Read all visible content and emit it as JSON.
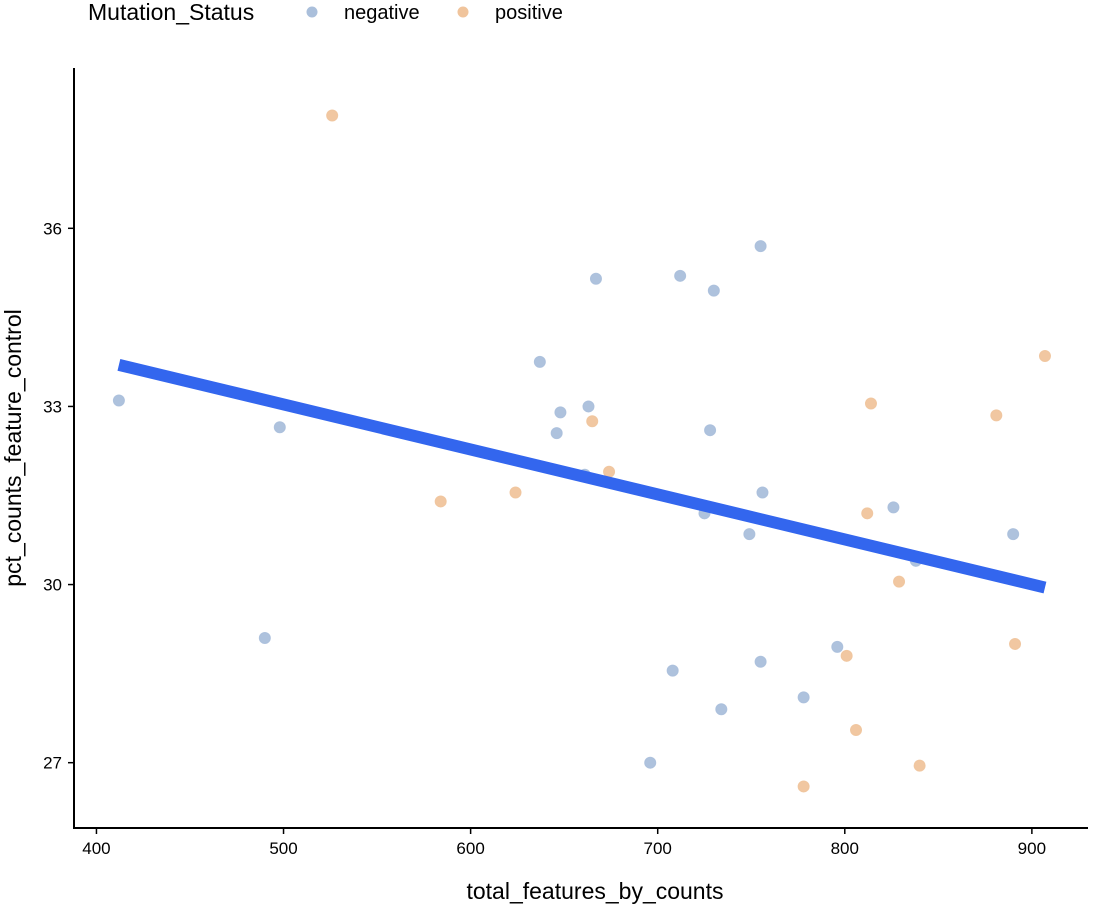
{
  "chart_data": {
    "type": "scatter",
    "xlabel": "total_features_by_counts",
    "ylabel": "pct_counts_feature_control",
    "xlim": [
      388,
      930
    ],
    "ylim": [
      25.9,
      38.7
    ],
    "xticks": [
      400,
      500,
      600,
      700,
      800,
      900
    ],
    "yticks": [
      27,
      30,
      33,
      36
    ],
    "grid": false,
    "legend": {
      "title": "Mutation_Status",
      "placement": "top-left"
    },
    "series": [
      {
        "name": "negative",
        "color": "#aabfdb",
        "points": [
          [
            412,
            33.1
          ],
          [
            490,
            29.1
          ],
          [
            498,
            32.65
          ],
          [
            637,
            33.75
          ],
          [
            646,
            32.55
          ],
          [
            648,
            32.9
          ],
          [
            661,
            31.85
          ],
          [
            663,
            33.0
          ],
          [
            667,
            35.15
          ],
          [
            696,
            27.0
          ],
          [
            708,
            28.55
          ],
          [
            712,
            35.2
          ],
          [
            725,
            31.2
          ],
          [
            728,
            32.6
          ],
          [
            730,
            34.95
          ],
          [
            734,
            27.9
          ],
          [
            749,
            30.85
          ],
          [
            755,
            35.7
          ],
          [
            755,
            28.7
          ],
          [
            756,
            31.55
          ],
          [
            778,
            28.1
          ],
          [
            796,
            28.95
          ],
          [
            826,
            31.3
          ],
          [
            838,
            30.4
          ],
          [
            890,
            30.85
          ]
        ]
      },
      {
        "name": "positive",
        "color": "#f0c49c",
        "points": [
          [
            526,
            37.9
          ],
          [
            584,
            31.4
          ],
          [
            624,
            31.55
          ],
          [
            665,
            32.75
          ],
          [
            674,
            31.9
          ],
          [
            778,
            26.6
          ],
          [
            801,
            28.8
          ],
          [
            806,
            27.55
          ],
          [
            812,
            31.2
          ],
          [
            814,
            33.05
          ],
          [
            829,
            30.05
          ],
          [
            840,
            26.95
          ],
          [
            881,
            32.85
          ],
          [
            891,
            29.0
          ],
          [
            907,
            33.85
          ]
        ]
      }
    ],
    "trend_line": {
      "color": "#3366ee",
      "x": [
        412,
        907
      ],
      "y": [
        33.7,
        29.95
      ]
    }
  }
}
